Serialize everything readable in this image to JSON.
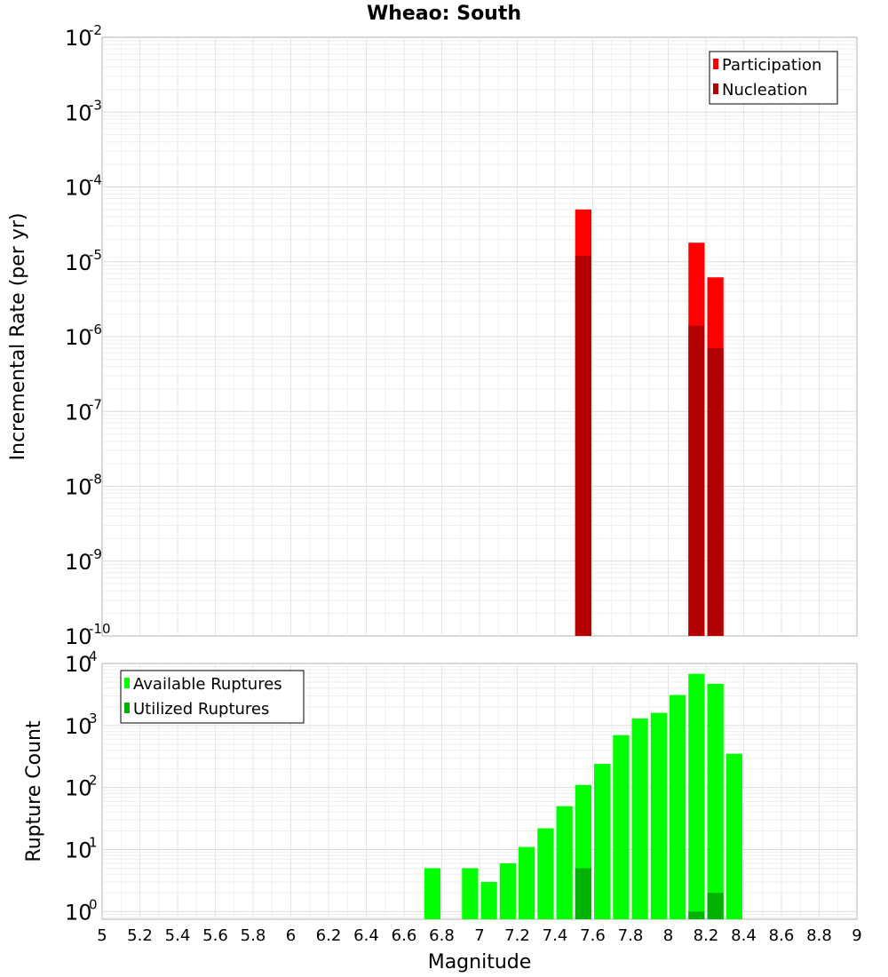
{
  "chart_data": [
    {
      "type": "bar",
      "title": "Wheao: South",
      "xlabel": "",
      "ylabel": "Incremental Rate (per yr)",
      "yscale": "log",
      "xlim": [
        5,
        9
      ],
      "ylim": [
        1e-10,
        0.01
      ],
      "y_ticks": [
        {
          "base": "10",
          "exp": "-2"
        },
        {
          "base": "10",
          "exp": "-3"
        },
        {
          "base": "10",
          "exp": "-4"
        },
        {
          "base": "10",
          "exp": "-5"
        },
        {
          "base": "10",
          "exp": "-6"
        },
        {
          "base": "10",
          "exp": "-7"
        },
        {
          "base": "10",
          "exp": "-8"
        },
        {
          "base": "10",
          "exp": "-9"
        },
        {
          "base": "10",
          "exp": "-10"
        }
      ],
      "legend_position": "top-right",
      "bin_width": 0.1,
      "series": [
        {
          "name": "Participation",
          "color": "#ff0000",
          "points": [
            [
              7.55,
              5e-05
            ],
            [
              8.15,
              1.8e-05
            ],
            [
              8.25,
              6.2e-06
            ]
          ]
        },
        {
          "name": "Nucleation",
          "color": "#b30000",
          "points": [
            [
              7.55,
              1.2e-05
            ],
            [
              8.15,
              1.4e-06
            ],
            [
              8.25,
              7e-07
            ]
          ]
        }
      ]
    },
    {
      "type": "bar",
      "title": "",
      "xlabel": "Magnitude",
      "ylabel": "Rupture Count",
      "yscale": "log",
      "xlim": [
        5,
        9
      ],
      "ylim": [
        0.75,
        10000
      ],
      "y_ticks": [
        {
          "base": "10",
          "exp": "4",
          "value": 10000
        },
        {
          "base": "10",
          "exp": "3",
          "value": 1000
        },
        {
          "base": "10",
          "exp": "2",
          "value": 100
        },
        {
          "base": "10",
          "exp": "1",
          "value": 10
        },
        {
          "base": "10",
          "exp": "0",
          "value": 1
        }
      ],
      "x_ticks": [
        "5",
        "5.2",
        "5.4",
        "5.6",
        "5.8",
        "6",
        "6.2",
        "6.4",
        "6.6",
        "6.8",
        "7",
        "7.2",
        "7.4",
        "7.6",
        "7.8",
        "8",
        "8.2",
        "8.4",
        "8.6",
        "8.8",
        "9"
      ],
      "legend_position": "top-left",
      "bin_width": 0.1,
      "series": [
        {
          "name": "Available Ruptures",
          "color": "#00ff00",
          "points": [
            [
              6.75,
              5
            ],
            [
              6.95,
              5
            ],
            [
              7.05,
              3
            ],
            [
              7.15,
              6
            ],
            [
              7.25,
              11
            ],
            [
              7.35,
              22
            ],
            [
              7.45,
              50
            ],
            [
              7.55,
              110
            ],
            [
              7.65,
              240
            ],
            [
              7.75,
              700
            ],
            [
              7.85,
              1300
            ],
            [
              7.95,
              1600
            ],
            [
              8.05,
              3100
            ],
            [
              8.15,
              6800
            ],
            [
              8.25,
              4700
            ],
            [
              8.35,
              350
            ]
          ]
        },
        {
          "name": "Utilized Ruptures",
          "color": "#00b300",
          "points": [
            [
              7.55,
              5
            ],
            [
              8.15,
              1
            ],
            [
              8.25,
              2
            ]
          ]
        }
      ]
    }
  ]
}
